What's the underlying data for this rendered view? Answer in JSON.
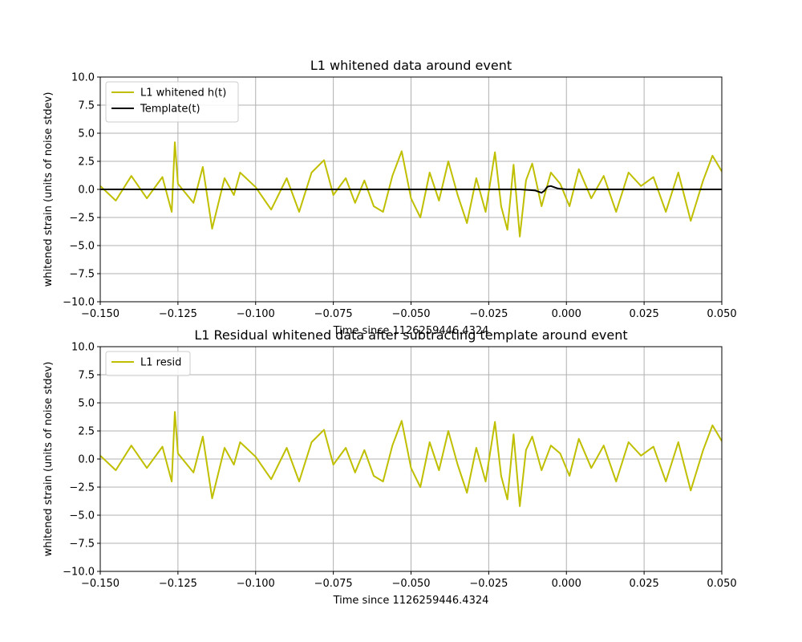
{
  "colors": {
    "data": "#bfbf00",
    "template": "#000000",
    "grid": "#b0b0b0"
  },
  "chart_data": [
    {
      "type": "line",
      "title": "L1 whitened data around event",
      "xlabel": "Time since 1126259446.4324",
      "ylabel": "whitened strain (units of noise stdev)",
      "xlim": [
        -0.15,
        0.05
      ],
      "ylim": [
        -10,
        10
      ],
      "x_ticks": [
        -0.15,
        -0.125,
        -0.1,
        -0.075,
        -0.05,
        -0.025,
        0.0,
        0.025,
        0.05
      ],
      "x_tick_labels": [
        "−0.150",
        "−0.125",
        "−0.100",
        "−0.075",
        "−0.050",
        "−0.025",
        "0.000",
        "0.025",
        "0.050"
      ],
      "y_ticks": [
        10,
        7.5,
        5,
        2.5,
        0,
        -2.5,
        -5,
        -7.5,
        -10
      ],
      "y_tick_labels": [
        "10.0",
        "7.5",
        "5.0",
        "2.5",
        "0.0",
        "−2.5",
        "−5.0",
        "−7.5",
        "−10.0"
      ],
      "grid": true,
      "legend_position": "top-left",
      "series": [
        {
          "name": "L1 whitened h(t)",
          "color": "#bfbf00",
          "x": [
            -0.15,
            -0.145,
            -0.14,
            -0.135,
            -0.13,
            -0.127,
            -0.126,
            -0.125,
            -0.12,
            -0.117,
            -0.114,
            -0.11,
            -0.107,
            -0.105,
            -0.1,
            -0.095,
            -0.09,
            -0.086,
            -0.082,
            -0.078,
            -0.075,
            -0.071,
            -0.068,
            -0.065,
            -0.062,
            -0.059,
            -0.056,
            -0.053,
            -0.05,
            -0.047,
            -0.044,
            -0.041,
            -0.038,
            -0.035,
            -0.032,
            -0.029,
            -0.026,
            -0.023,
            -0.021,
            -0.019,
            -0.017,
            -0.015,
            -0.013,
            -0.011,
            -0.008,
            -0.005,
            -0.002,
            0.001,
            0.004,
            0.008,
            0.012,
            0.016,
            0.02,
            0.024,
            0.028,
            0.032,
            0.036,
            0.04,
            0.044,
            0.047,
            0.05
          ],
          "y": [
            0.3,
            -1.0,
            1.2,
            -0.8,
            1.1,
            -2.0,
            4.2,
            0.5,
            -1.2,
            2.0,
            -3.5,
            1.0,
            -0.5,
            1.5,
            0.2,
            -1.8,
            1.0,
            -2.0,
            1.5,
            2.6,
            -0.5,
            1.0,
            -1.2,
            0.8,
            -1.5,
            -2.0,
            1.2,
            3.4,
            -0.8,
            -2.5,
            1.5,
            -1.0,
            2.5,
            -0.5,
            -3.0,
            1.0,
            -2.0,
            3.3,
            -1.5,
            -3.6,
            2.2,
            -4.2,
            0.8,
            2.3,
            -1.5,
            1.5,
            0.5,
            -1.5,
            1.8,
            -0.8,
            1.2,
            -2.0,
            1.5,
            0.3,
            1.1,
            -2.0,
            1.5,
            -2.8,
            0.8,
            3.0,
            1.6
          ]
        },
        {
          "name": "Template(t)",
          "color": "#000000",
          "x": [
            -0.15,
            -0.02,
            -0.015,
            -0.012,
            -0.01,
            -0.009,
            -0.008,
            -0.007,
            -0.0065,
            -0.006,
            -0.005,
            -0.004,
            -0.003,
            -0.002,
            0.0,
            0.01,
            0.05
          ],
          "y": [
            0.0,
            0.0,
            0.0,
            -0.05,
            -0.1,
            -0.2,
            -0.3,
            -0.1,
            0.1,
            0.25,
            0.3,
            0.2,
            0.1,
            0.05,
            0.0,
            0.0,
            0.0
          ]
        }
      ]
    },
    {
      "type": "line",
      "title": "L1 Residual whitened data after subtracting template around event",
      "xlabel": "Time since 1126259446.4324",
      "ylabel": "whitened strain (units of noise stdev)",
      "xlim": [
        -0.15,
        0.05
      ],
      "ylim": [
        -10,
        10
      ],
      "x_ticks": [
        -0.15,
        -0.125,
        -0.1,
        -0.075,
        -0.05,
        -0.025,
        0.0,
        0.025,
        0.05
      ],
      "x_tick_labels": [
        "−0.150",
        "−0.125",
        "−0.100",
        "−0.075",
        "−0.050",
        "−0.025",
        "0.000",
        "0.025",
        "0.050"
      ],
      "y_ticks": [
        10,
        7.5,
        5,
        2.5,
        0,
        -2.5,
        -5,
        -7.5,
        -10
      ],
      "y_tick_labels": [
        "10.0",
        "7.5",
        "5.0",
        "2.5",
        "0.0",
        "−2.5",
        "−5.0",
        "−7.5",
        "−10.0"
      ],
      "grid": true,
      "legend_position": "top-left",
      "series": [
        {
          "name": "L1 resid",
          "color": "#bfbf00",
          "x": [
            -0.15,
            -0.145,
            -0.14,
            -0.135,
            -0.13,
            -0.127,
            -0.126,
            -0.125,
            -0.12,
            -0.117,
            -0.114,
            -0.11,
            -0.107,
            -0.105,
            -0.1,
            -0.095,
            -0.09,
            -0.086,
            -0.082,
            -0.078,
            -0.075,
            -0.071,
            -0.068,
            -0.065,
            -0.062,
            -0.059,
            -0.056,
            -0.053,
            -0.05,
            -0.047,
            -0.044,
            -0.041,
            -0.038,
            -0.035,
            -0.032,
            -0.029,
            -0.026,
            -0.023,
            -0.021,
            -0.019,
            -0.017,
            -0.015,
            -0.013,
            -0.011,
            -0.008,
            -0.005,
            -0.002,
            0.001,
            0.004,
            0.008,
            0.012,
            0.016,
            0.02,
            0.024,
            0.028,
            0.032,
            0.036,
            0.04,
            0.044,
            0.047,
            0.05
          ],
          "y": [
            0.3,
            -1.0,
            1.2,
            -0.8,
            1.1,
            -2.0,
            4.2,
            0.5,
            -1.2,
            2.0,
            -3.5,
            1.0,
            -0.5,
            1.5,
            0.2,
            -1.8,
            1.0,
            -2.0,
            1.5,
            2.6,
            -0.5,
            1.0,
            -1.2,
            0.8,
            -1.5,
            -2.0,
            1.2,
            3.4,
            -0.8,
            -2.5,
            1.5,
            -1.0,
            2.5,
            -0.5,
            -3.0,
            1.0,
            -2.0,
            3.3,
            -1.5,
            -3.6,
            2.2,
            -4.2,
            0.8,
            2.0,
            -1.0,
            1.2,
            0.5,
            -1.5,
            1.8,
            -0.8,
            1.2,
            -2.0,
            1.5,
            0.3,
            1.1,
            -2.0,
            1.5,
            -2.8,
            0.8,
            3.0,
            1.6
          ]
        }
      ]
    }
  ]
}
